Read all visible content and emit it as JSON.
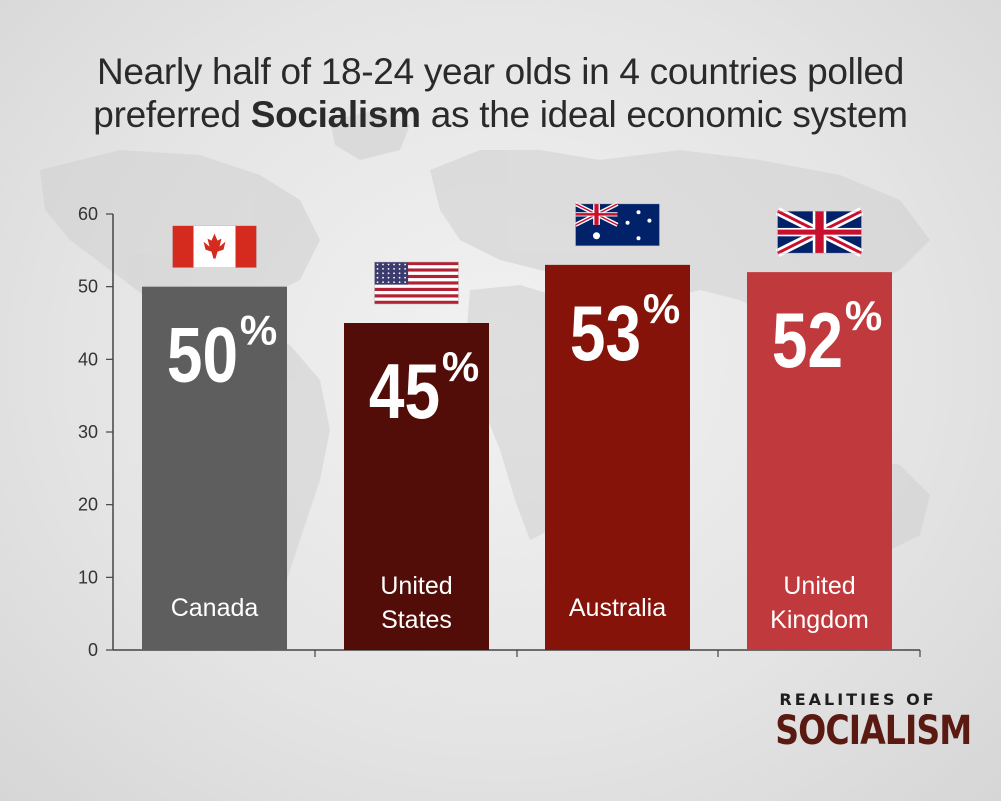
{
  "title": {
    "line1": "Nearly half of 18-24 year olds in 4 countries polled",
    "line2_pre": "preferred ",
    "line2_bold": "Socialism",
    "line2_post": " as the ideal economic system"
  },
  "brand": {
    "top": "REALITIES OF",
    "main": "SOCIALISM"
  },
  "chart_data": {
    "type": "bar",
    "title": "Nearly half of 18-24 year olds in 4 countries polled preferred Socialism as the ideal economic system",
    "categories": [
      "Canada",
      "United States",
      "Australia",
      "United Kingdom"
    ],
    "category_lines": [
      [
        "Canada"
      ],
      [
        "United",
        "States"
      ],
      [
        "Australia"
      ],
      [
        "United",
        "Kingdom"
      ]
    ],
    "values": [
      50,
      45,
      53,
      52
    ],
    "value_labels": [
      "50%",
      "45%",
      "53%",
      "52%"
    ],
    "bar_colors": [
      "#5e5e5e",
      "#520d08",
      "#861309",
      "#c0393c"
    ],
    "flags": [
      "canada-flag-icon",
      "usa-flag-icon",
      "australia-flag-icon",
      "uk-flag-icon"
    ],
    "ylim": [
      0,
      60
    ],
    "yticks": [
      0,
      10,
      20,
      30,
      40,
      50,
      60
    ],
    "grid": false,
    "legend": "none"
  }
}
